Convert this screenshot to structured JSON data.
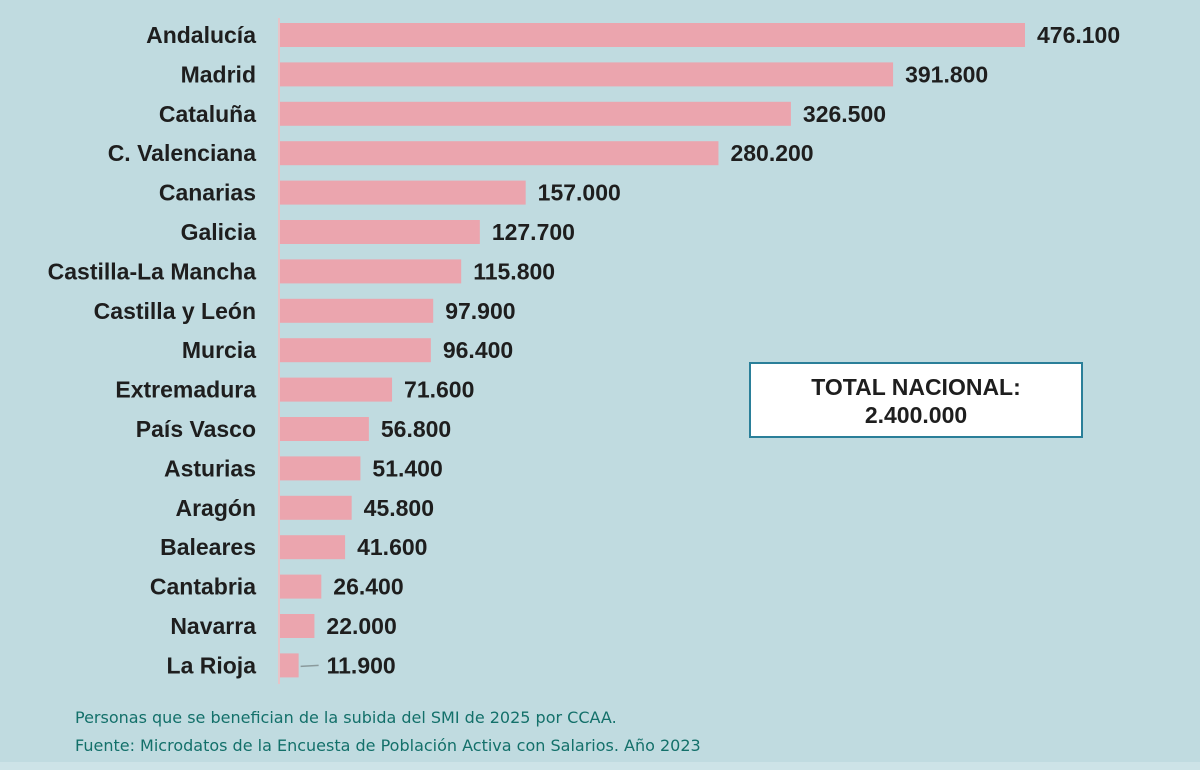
{
  "chart_data": {
    "type": "bar",
    "orientation": "horizontal",
    "categories": [
      "Andalucía",
      "Madrid",
      "Cataluña",
      "C. Valenciana",
      "Canarias",
      "Galicia",
      "Castilla-La Mancha",
      "Castilla y León",
      "Murcia",
      "Extremadura",
      "País Vasco",
      "Asturias",
      "Aragón",
      "Baleares",
      "Cantabria",
      "Navarra",
      "La Rioja"
    ],
    "values": [
      476100,
      391800,
      326500,
      280200,
      157000,
      127700,
      115800,
      97900,
      96400,
      71600,
      56800,
      51400,
      45800,
      41600,
      26400,
      22000,
      11900
    ],
    "value_labels": [
      "476.100",
      "391.800",
      "326.500",
      "280.200",
      "157.000",
      "127.700",
      "115.800",
      "97.900",
      "96.400",
      "71.600",
      "56.800",
      "51.400",
      "45.800",
      "41.600",
      "26.400",
      "22.000",
      "11.900"
    ],
    "xlim": [
      0,
      476100
    ],
    "grid": false,
    "colors": {
      "bar": "#eba5ae",
      "background": "#c0dbe0",
      "axis": "#e8c4c8",
      "caption": "#13706a",
      "box_border": "#2a7f99"
    }
  },
  "total_box": {
    "label": "TOTAL NACIONAL:",
    "value": "2.400.000"
  },
  "caption": {
    "line1": "Personas que se benefician de la subida del SMI de 2025 por CCAA.",
    "line2": "Fuente: Microdatos de la Encuesta de Población Activa con Salarios. Año 2023"
  }
}
